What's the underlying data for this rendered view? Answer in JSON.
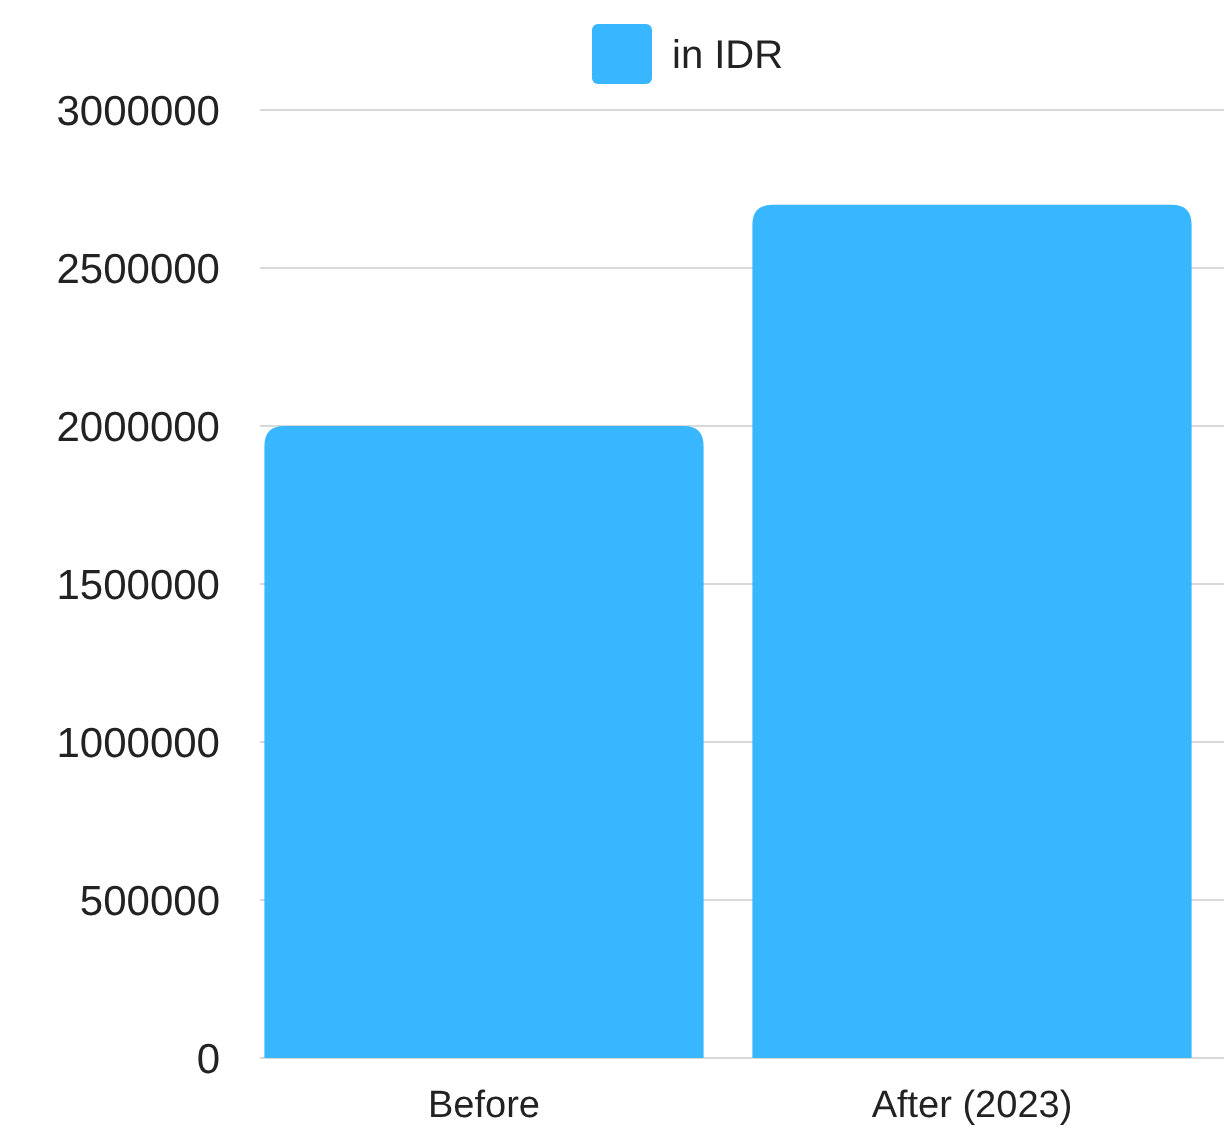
{
  "chart_data": {
    "type": "bar",
    "categories": [
      "Before",
      "After (2023)"
    ],
    "series": [
      {
        "name": "in IDR",
        "color": "#38b6ff",
        "values": [
          2000000,
          2700000
        ]
      }
    ],
    "ylim": [
      0,
      3000000
    ],
    "yticks": [
      0,
      500000,
      1000000,
      1500000,
      2000000,
      2500000,
      3000000
    ],
    "grid": "y",
    "legend": "top"
  }
}
